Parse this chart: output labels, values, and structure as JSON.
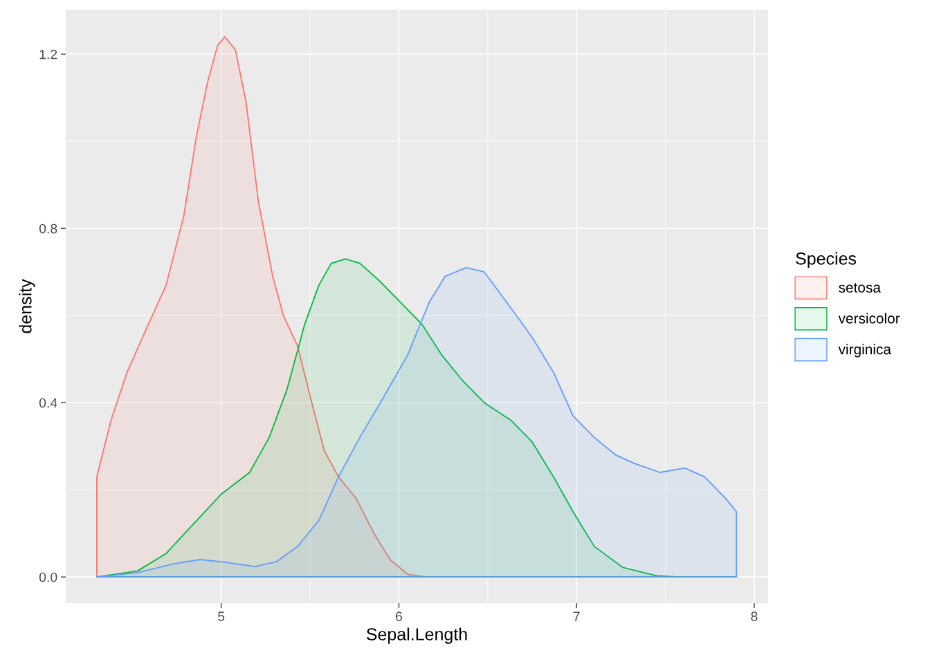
{
  "chart_data": {
    "type": "area",
    "xlabel": "Sepal.Length",
    "ylabel": "density",
    "legend_title": "Species",
    "legend": "right",
    "grid": true,
    "xlim": [
      4.125,
      8.078
    ],
    "ylim": [
      -0.06,
      1.302
    ],
    "xticks": [
      5,
      6,
      7,
      8
    ],
    "yticks": [
      {
        "value": 0,
        "label": "0.0"
      },
      {
        "value": 0.4,
        "label": "0.4"
      },
      {
        "value": 0.8,
        "label": "0.8"
      },
      {
        "value": 1.2,
        "label": "1.2"
      }
    ],
    "series": [
      {
        "name": "setosa",
        "color": "#f8766d",
        "x": [
          4.3,
          4.38,
          4.47,
          4.59,
          4.69,
          4.79,
          4.86,
          4.92,
          4.98,
          5.02,
          5.08,
          5.14,
          5.21,
          5.29,
          5.35,
          5.43,
          5.51,
          5.58,
          5.66,
          5.76,
          5.86,
          5.95,
          6.05,
          6.15,
          7.9
        ],
        "values": [
          0.23,
          0.36,
          0.47,
          0.58,
          0.67,
          0.83,
          1.01,
          1.13,
          1.22,
          1.24,
          1.21,
          1.09,
          0.86,
          0.69,
          0.6,
          0.53,
          0.4,
          0.29,
          0.23,
          0.18,
          0.1,
          0.04,
          0.006,
          0,
          0
        ]
      },
      {
        "name": "versicolor",
        "color": "#00ba38",
        "x": [
          4.3,
          4.53,
          4.69,
          4.84,
          5.0,
          5.16,
          5.27,
          5.37,
          5.47,
          5.55,
          5.62,
          5.7,
          5.78,
          5.89,
          6.01,
          6.13,
          6.24,
          6.36,
          6.48,
          6.63,
          6.75,
          6.87,
          6.98,
          7.1,
          7.26,
          7.45,
          7.57,
          7.9
        ],
        "values": [
          0,
          0.014,
          0.054,
          0.12,
          0.19,
          0.24,
          0.32,
          0.43,
          0.58,
          0.67,
          0.72,
          0.73,
          0.72,
          0.68,
          0.63,
          0.58,
          0.51,
          0.45,
          0.4,
          0.36,
          0.31,
          0.23,
          0.15,
          0.07,
          0.022,
          0.003,
          0,
          0
        ]
      },
      {
        "name": "virginica",
        "color": "#619cff",
        "x": [
          4.3,
          4.53,
          4.73,
          4.88,
          5.0,
          5.19,
          5.31,
          5.43,
          5.55,
          5.66,
          5.78,
          5.91,
          6.05,
          6.17,
          6.26,
          6.38,
          6.48,
          6.59,
          6.75,
          6.87,
          6.98,
          7.1,
          7.22,
          7.33,
          7.47,
          7.61,
          7.72,
          7.84,
          7.9
        ],
        "values": [
          0,
          0.01,
          0.03,
          0.04,
          0.035,
          0.024,
          0.035,
          0.07,
          0.13,
          0.23,
          0.32,
          0.41,
          0.51,
          0.63,
          0.69,
          0.71,
          0.7,
          0.64,
          0.55,
          0.47,
          0.37,
          0.32,
          0.28,
          0.26,
          0.24,
          0.25,
          0.23,
          0.18,
          0.15
        ]
      }
    ]
  }
}
